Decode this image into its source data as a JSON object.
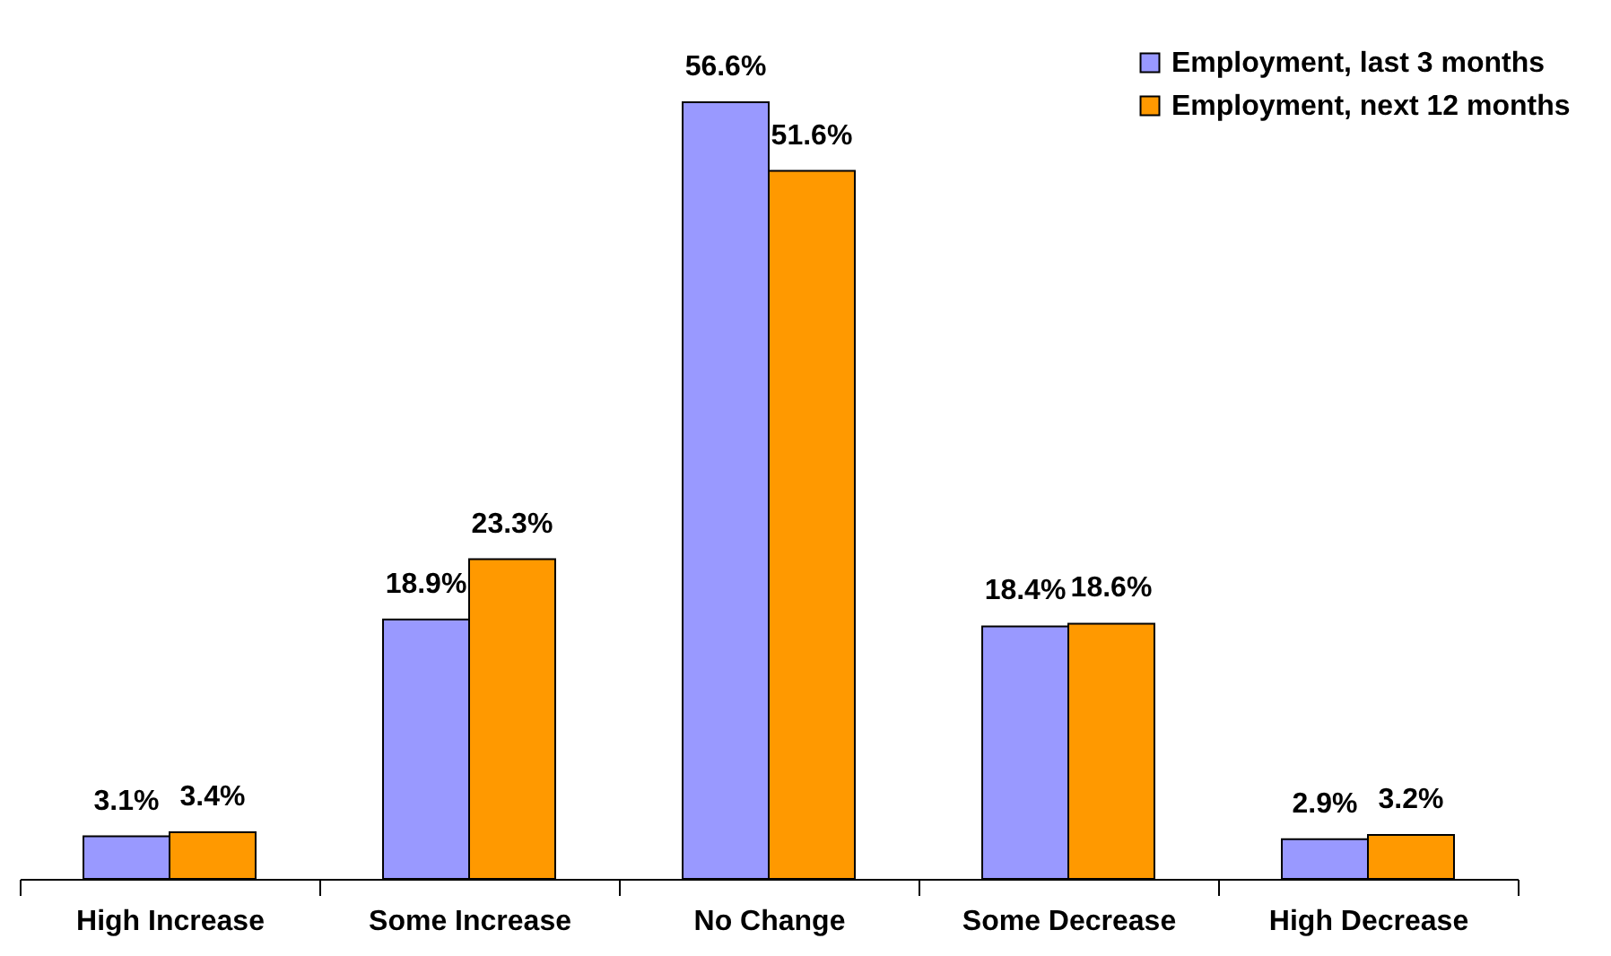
{
  "chart_data": {
    "type": "bar",
    "categories": [
      "High Increase",
      "Some Increase",
      "No Change",
      "Some Decrease",
      "High Decrease"
    ],
    "series": [
      {
        "name": "Employment, last 3 months",
        "color": "#9999ff",
        "values": [
          3.1,
          18.9,
          56.6,
          18.4,
          2.9
        ],
        "value_labels": [
          "3.1%",
          "18.9%",
          "56.6%",
          "18.4%",
          "2.9%"
        ]
      },
      {
        "name": "Employment, next 12 months",
        "color": "#ff9900",
        "values": [
          3.4,
          23.3,
          51.6,
          18.6,
          3.2
        ],
        "value_labels": [
          "3.4%",
          "23.3%",
          "51.6%",
          "18.6%",
          "3.2%"
        ]
      }
    ],
    "legend": "top right"
  }
}
